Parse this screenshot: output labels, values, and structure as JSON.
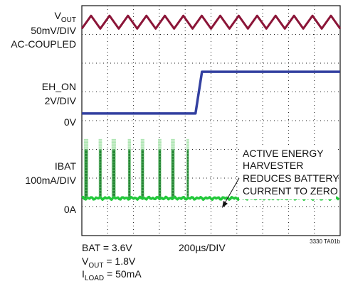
{
  "chart_data": {
    "type": "line",
    "title": "",
    "grid": true,
    "grid_divisions": {
      "x": 10,
      "y": 8
    },
    "time_scale": "200µs/DIV",
    "channel_labels": [
      {
        "name": "V",
        "sub": "OUT",
        "text": ""
      },
      {
        "name": "",
        "sub": "",
        "text": "50mV/DIV"
      },
      {
        "name": "",
        "sub": "",
        "text": "AC-COUPLED"
      },
      {
        "name": "",
        "sub": "",
        "text": "EH_ON"
      },
      {
        "name": "",
        "sub": "",
        "text": "2V/DIV"
      },
      {
        "name": "",
        "sub": "",
        "text": "0V"
      },
      {
        "name": "",
        "sub": "",
        "text": "IBAT"
      },
      {
        "name": "",
        "sub": "",
        "text": "100mA/DIV"
      },
      {
        "name": "",
        "sub": "",
        "text": "0A"
      }
    ],
    "series": [
      {
        "name": "VOUT",
        "color": "#8b1538",
        "description_values": {
          "shape": "triangle",
          "cycles": 14,
          "x_range_div": [
            0,
            10
          ],
          "y_high_div": 7.65,
          "y_low_div": 7.2
        }
      },
      {
        "name": "EH_ON",
        "color": "#3340a0",
        "description_values": {
          "step_time_div": 4.4,
          "rise_end_div": 4.65,
          "y_low_div": 4.25,
          "y_high_div": 5.7
        }
      },
      {
        "name": "IBAT",
        "color": "#22c83a",
        "description_values": {
          "baseline_div": 1.3,
          "pulses_div": [
            [
              0.08,
              0.25
            ],
            [
              0.65,
              0.78
            ],
            [
              1.15,
              1.32
            ],
            [
              1.78,
              1.9
            ],
            [
              2.28,
              2.42
            ],
            [
              2.95,
              3.08
            ],
            [
              3.45,
              3.6
            ],
            [
              4.05,
              4.15
            ]
          ],
          "pulse_top_div": 3.35,
          "pulse_top_dim_div": 3.0
        }
      }
    ],
    "annotation": {
      "lines": [
        "ACTIVE ENERGY",
        "HARVESTER",
        "REDUCES BATTERY",
        "CURRENT TO ZERO"
      ]
    },
    "conditions": {
      "bat": "BAT = 3.6V",
      "vout_prefix": "V",
      "vout_sub": "OUT",
      "vout_value": " = 1.8V",
      "iload_prefix": "I",
      "iload_sub": "LOAD",
      "iload_value": " = 50mA"
    },
    "figure_id": "3330 TA01b"
  }
}
